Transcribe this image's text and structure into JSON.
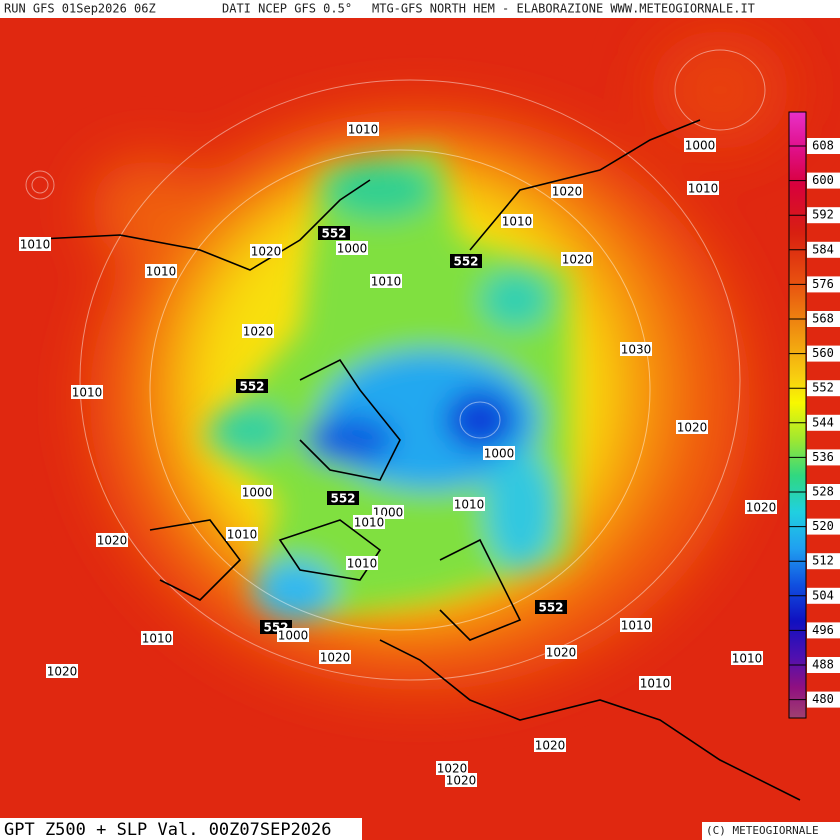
{
  "header": {
    "run": "RUN GFS 01Sep2026 06Z",
    "source": "DATI NCEP GFS 0.5°",
    "product": "MTG-GFS NORTH HEM - ELABORAZIONE WWW.METEOGIORNALE.IT"
  },
  "footer": {
    "title": "GPT Z500 + SLP Val. 00Z07SEP2026",
    "copyright": "(C) METEOGIORNALE"
  },
  "colorbar": {
    "labels": [
      608,
      600,
      592,
      584,
      576,
      568,
      560,
      552,
      544,
      536,
      528,
      520,
      512,
      504,
      496,
      488,
      480
    ]
  },
  "map": {
    "labels": [
      1010,
      1000,
      1020,
      1010,
      1010,
      552,
      1000,
      1020,
      1010,
      1020,
      552,
      1010,
      1010,
      1020,
      1030,
      1010,
      552,
      1020,
      1000,
      1000,
      552,
      1010,
      1000,
      1010,
      1010,
      1020,
      1020,
      1010,
      552,
      552,
      1000,
      1010,
      1010,
      1020,
      1020,
      1010,
      1020,
      1010,
      1020,
      1020,
      1020
    ]
  }
}
